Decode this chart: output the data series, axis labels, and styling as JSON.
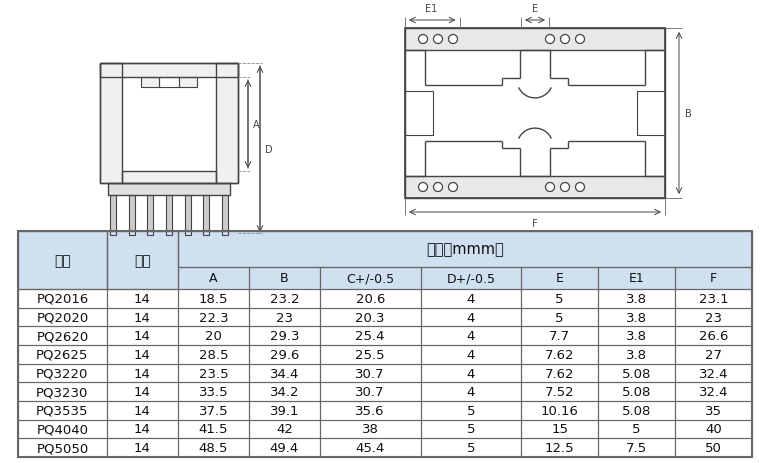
{
  "col_labels": [
    "型号",
    "针数",
    "A",
    "B",
    "C+/-0.5",
    "D+/-0.5",
    "E",
    "E1",
    "F"
  ],
  "dim_header": "尺寸（mmm）",
  "rows": [
    [
      "PQ2016",
      "14",
      "18.5",
      "23.2",
      "20.6",
      "4",
      "5",
      "3.8",
      "23.1"
    ],
    [
      "PQ2020",
      "14",
      "22.3",
      "23",
      "20.3",
      "4",
      "5",
      "3.8",
      "23"
    ],
    [
      "PQ2620",
      "14",
      "20",
      "29.3",
      "25.4",
      "4",
      "7.7",
      "3.8",
      "26.6"
    ],
    [
      "PQ2625",
      "14",
      "28.5",
      "29.6",
      "25.5",
      "4",
      "7.62",
      "3.8",
      "27"
    ],
    [
      "PQ3220",
      "14",
      "23.5",
      "34.4",
      "30.7",
      "4",
      "7.62",
      "5.08",
      "32.4"
    ],
    [
      "PQ3230",
      "14",
      "33.5",
      "34.2",
      "30.7",
      "4",
      "7.52",
      "5.08",
      "32.4"
    ],
    [
      "PQ3535",
      "14",
      "37.5",
      "39.1",
      "35.6",
      "5",
      "10.16",
      "5.08",
      "35"
    ],
    [
      "PQ4040",
      "14",
      "41.5",
      "42",
      "38",
      "5",
      "15",
      "5",
      "40"
    ],
    [
      "PQ5050",
      "14",
      "48.5",
      "49.4",
      "45.4",
      "5",
      "12.5",
      "7.5",
      "50"
    ]
  ],
  "header_bg": "#cfe0f0",
  "border_color": "#666666",
  "fig_bg": "#ffffff",
  "line_color": "#444444"
}
